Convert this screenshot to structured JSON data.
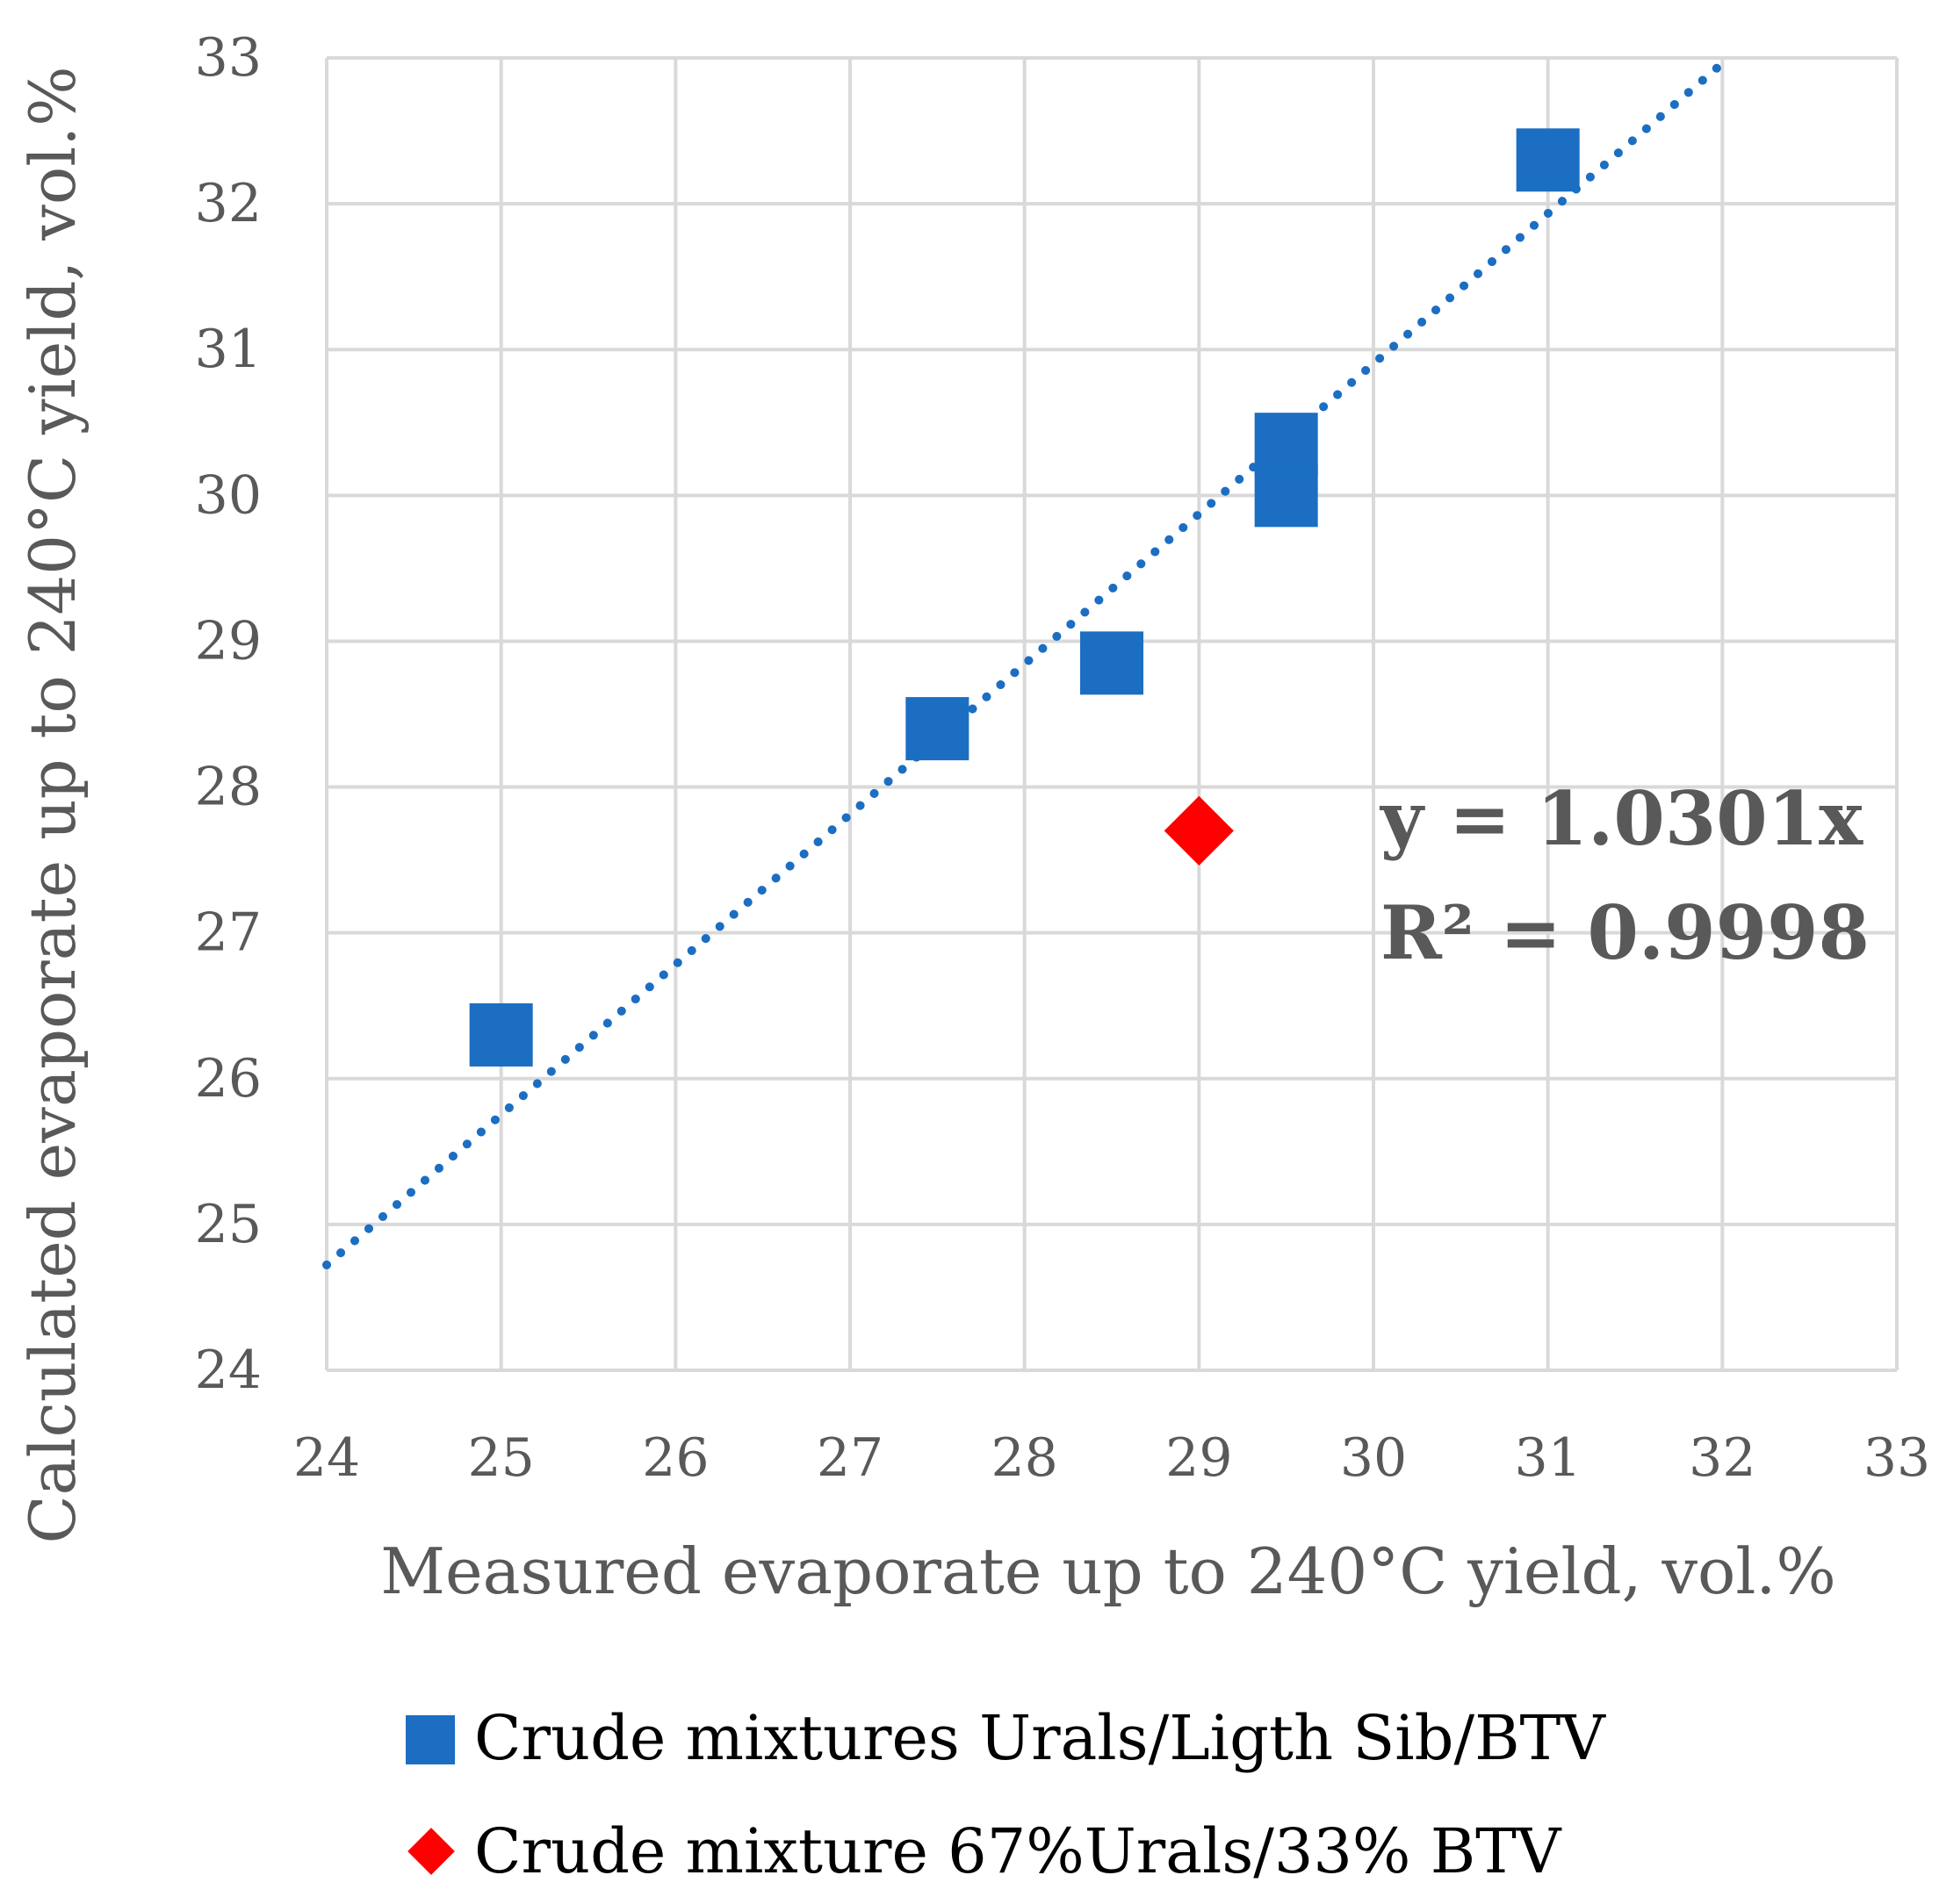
{
  "chart_data": {
    "type": "scatter",
    "xlabel": "Measured evaporate up to 240°C yield, vol.%",
    "ylabel": "Calculated evaporate up to 240°C yield, vol.%",
    "xlim": [
      24,
      33
    ],
    "ylim": [
      24,
      33
    ],
    "x_ticks": [
      "24",
      "25",
      "26",
      "27",
      "28",
      "29",
      "30",
      "31",
      "32",
      "33"
    ],
    "y_ticks": [
      "24",
      "25",
      "26",
      "27",
      "28",
      "29",
      "30",
      "31",
      "32",
      "33"
    ],
    "grid": true,
    "series": [
      {
        "name": "Crude mixtures Urals/Ligth Sib/BTV",
        "marker": "square",
        "color": "#1B6EC2",
        "points": [
          {
            "x": 25.0,
            "y": 26.3
          },
          {
            "x": 27.5,
            "y": 28.4
          },
          {
            "x": 28.5,
            "y": 28.85
          },
          {
            "x": 29.5,
            "y": 30.0
          },
          {
            "x": 29.5,
            "y": 30.35
          },
          {
            "x": 31.0,
            "y": 32.3
          }
        ]
      },
      {
        "name": "Crude mixture 67%Urals/33% BTV",
        "marker": "diamond",
        "color": "#FF0000",
        "points": [
          {
            "x": 29.0,
            "y": 27.7
          }
        ]
      }
    ],
    "trendline": {
      "slope": 1.0301,
      "intercept": 0,
      "style": "dotted",
      "color": "#1B6EC2",
      "equation": "y = 1.0301x",
      "r_squared": "R² = 0.9998"
    },
    "legend": {
      "position": "bottom"
    }
  }
}
